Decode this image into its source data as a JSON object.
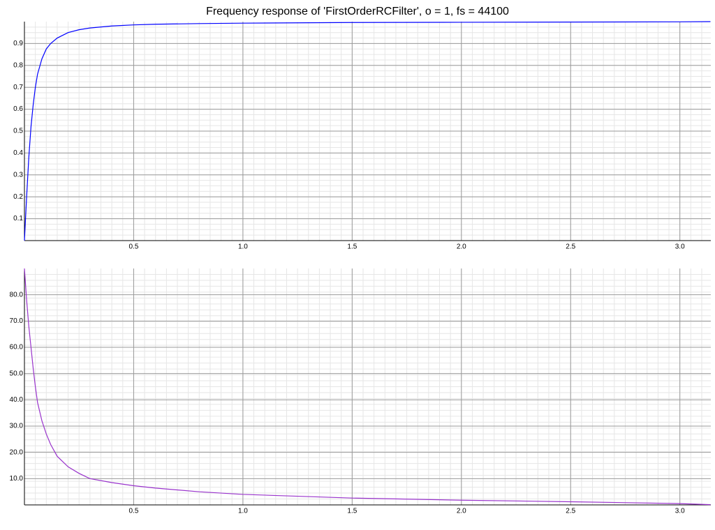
{
  "chart_data": {
    "title": "Frequency response of 'FirstOrderRCFilter', o = 1, fs = 44100",
    "charts": [
      {
        "type": "line",
        "xlim": [
          0,
          3.14159
        ],
        "ylim": [
          0,
          1.0
        ],
        "xticks": [
          0.5,
          1.0,
          1.5,
          2.0,
          2.5,
          3.0
        ],
        "xtick_labels": [
          "0.5",
          "1.0",
          "1.5",
          "2.0",
          "2.5",
          "3.0"
        ],
        "yticks": [
          0.1,
          0.2,
          0.3,
          0.4,
          0.5,
          0.6,
          0.7,
          0.8,
          0.9
        ],
        "ytick_labels": [
          "0.1",
          "0.2",
          "0.3",
          "0.4",
          "0.5",
          "0.6",
          "0.7",
          "0.8",
          "0.9"
        ],
        "grid": true,
        "color": "#0000ff",
        "series": [
          {
            "x": [
              0,
              0.01,
              0.02,
              0.03,
              0.04,
              0.05,
              0.06,
              0.08,
              0.1,
              0.12,
              0.15,
              0.2,
              0.25,
              0.3,
              0.4,
              0.5,
              0.6,
              0.8,
              1.0,
              1.5,
              2.0,
              2.5,
              3.0,
              3.14
            ],
            "y": [
              0,
              0.2,
              0.38,
              0.52,
              0.62,
              0.7,
              0.76,
              0.83,
              0.875,
              0.9,
              0.925,
              0.95,
              0.963,
              0.971,
              0.98,
              0.985,
              0.988,
              0.991,
              0.993,
              0.996,
              0.997,
              0.998,
              0.999,
              1.0
            ]
          }
        ]
      },
      {
        "type": "line",
        "xlim": [
          0,
          3.14159
        ],
        "ylim": [
          0,
          90
        ],
        "xticks": [
          0.5,
          1.0,
          1.5,
          2.0,
          2.5,
          3.0
        ],
        "xtick_labels": [
          "0.5",
          "1.0",
          "1.5",
          "2.0",
          "2.5",
          "3.0"
        ],
        "yticks": [
          10,
          20,
          30,
          40,
          50,
          60,
          70,
          80
        ],
        "ytick_labels": [
          "10.0",
          "20.0",
          "30.0",
          "40.0",
          "50.0",
          "60.0",
          "70.0",
          "80.0"
        ],
        "grid": true,
        "color": "#9933cc",
        "series": [
          {
            "x": [
              0,
              0.01,
              0.02,
              0.03,
              0.04,
              0.05,
              0.06,
              0.08,
              0.1,
              0.12,
              0.15,
              0.2,
              0.25,
              0.3,
              0.4,
              0.5,
              0.6,
              0.8,
              1.0,
              1.5,
              2.0,
              2.5,
              3.0,
              3.14
            ],
            "y": [
              90,
              78,
              68,
              60,
              52,
              45,
              39,
              32,
              27,
              23,
              18.5,
              14.5,
              12,
              10,
              8.5,
              7.3,
              6.4,
              5,
              4,
              2.6,
              1.8,
              1.2,
              0.5,
              0.1
            ]
          }
        ]
      }
    ]
  }
}
